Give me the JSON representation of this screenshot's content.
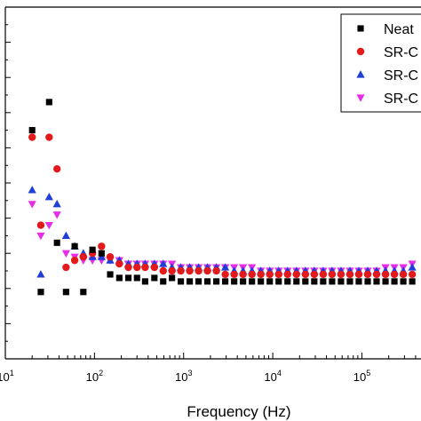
{
  "chart_data": {
    "type": "scatter",
    "xlabel": "Frequency (Hz)",
    "ylabel": "",
    "x_scale": "log",
    "x_ticks": [
      {
        "value": 10,
        "base": "10",
        "exp": "1"
      },
      {
        "value": 100,
        "base": "10",
        "exp": "2"
      },
      {
        "value": 1000,
        "base": "10",
        "exp": "3"
      },
      {
        "value": 10000,
        "base": "10",
        "exp": "4"
      },
      {
        "value": 100000,
        "base": "10",
        "exp": "5"
      }
    ],
    "xlim": [
      10,
      460000
    ],
    "ylim": [
      0,
      1
    ],
    "legend_position": "top-right",
    "series": [
      {
        "name": "Neat",
        "marker": "square",
        "color": "#000000",
        "points": [
          [
            20,
            0.65
          ],
          [
            25,
            0.19
          ],
          [
            31,
            0.73
          ],
          [
            38,
            0.33
          ],
          [
            48,
            0.19
          ],
          [
            60,
            0.32
          ],
          [
            75,
            0.19
          ],
          [
            95,
            0.31
          ],
          [
            120,
            0.3
          ],
          [
            150,
            0.24
          ],
          [
            190,
            0.23
          ],
          [
            240,
            0.23
          ],
          [
            300,
            0.23
          ],
          [
            370,
            0.22
          ],
          [
            470,
            0.23
          ],
          [
            590,
            0.22
          ],
          [
            740,
            0.23
          ],
          [
            930,
            0.22
          ],
          [
            1170,
            0.22
          ],
          [
            1470,
            0.22
          ],
          [
            1850,
            0.22
          ],
          [
            2330,
            0.22
          ],
          [
            2930,
            0.22
          ],
          [
            3690,
            0.22
          ],
          [
            4640,
            0.22
          ],
          [
            5840,
            0.22
          ],
          [
            7350,
            0.22
          ],
          [
            9250,
            0.22
          ],
          [
            11640,
            0.22
          ],
          [
            14650,
            0.22
          ],
          [
            18440,
            0.22
          ],
          [
            23210,
            0.22
          ],
          [
            29210,
            0.22
          ],
          [
            36770,
            0.22
          ],
          [
            46270,
            0.22
          ],
          [
            58240,
            0.22
          ],
          [
            73300,
            0.22
          ],
          [
            92250,
            0.22
          ],
          [
            116100,
            0.22
          ],
          [
            146100,
            0.22
          ],
          [
            183900,
            0.22
          ],
          [
            231500,
            0.22
          ],
          [
            291300,
            0.22
          ],
          [
            366700,
            0.22
          ],
          [
            461500,
            0.22
          ]
        ]
      },
      {
        "name": "SR-C",
        "marker": "circle",
        "color": "#e31a1c",
        "points": [
          [
            20,
            0.63
          ],
          [
            25,
            0.38
          ],
          [
            31,
            0.63
          ],
          [
            38,
            0.54
          ],
          [
            48,
            0.26
          ],
          [
            60,
            0.28
          ],
          [
            75,
            0.29
          ],
          [
            95,
            0.3
          ],
          [
            120,
            0.32
          ],
          [
            150,
            0.29
          ],
          [
            190,
            0.27
          ],
          [
            240,
            0.26
          ],
          [
            300,
            0.26
          ],
          [
            370,
            0.26
          ],
          [
            470,
            0.26
          ],
          [
            590,
            0.25
          ],
          [
            740,
            0.25
          ],
          [
            930,
            0.25
          ],
          [
            1170,
            0.25
          ],
          [
            1470,
            0.25
          ],
          [
            1850,
            0.25
          ],
          [
            2330,
            0.25
          ],
          [
            2930,
            0.24
          ],
          [
            3690,
            0.24
          ],
          [
            4640,
            0.24
          ],
          [
            5840,
            0.24
          ],
          [
            7350,
            0.24
          ],
          [
            9250,
            0.24
          ],
          [
            11640,
            0.24
          ],
          [
            14650,
            0.24
          ],
          [
            18440,
            0.24
          ],
          [
            23210,
            0.24
          ],
          [
            29210,
            0.24
          ],
          [
            36770,
            0.24
          ],
          [
            46270,
            0.24
          ],
          [
            58240,
            0.24
          ],
          [
            73300,
            0.24
          ],
          [
            92250,
            0.24
          ],
          [
            116100,
            0.24
          ],
          [
            146100,
            0.24
          ],
          [
            183900,
            0.24
          ],
          [
            231500,
            0.24
          ],
          [
            291300,
            0.24
          ],
          [
            366700,
            0.24
          ],
          [
            461500,
            0.25
          ]
        ]
      },
      {
        "name": "SR-C",
        "marker": "triangle-up",
        "color": "#1f3fd6",
        "points": [
          [
            20,
            0.48
          ],
          [
            25,
            0.24
          ],
          [
            31,
            0.46
          ],
          [
            38,
            0.44
          ],
          [
            48,
            0.35
          ],
          [
            60,
            0.32
          ],
          [
            75,
            0.3
          ],
          [
            95,
            0.29
          ],
          [
            120,
            0.29
          ],
          [
            150,
            0.28
          ],
          [
            190,
            0.28
          ],
          [
            240,
            0.27
          ],
          [
            300,
            0.27
          ],
          [
            370,
            0.27
          ],
          [
            470,
            0.27
          ],
          [
            590,
            0.27
          ],
          [
            740,
            0.26
          ],
          [
            930,
            0.26
          ],
          [
            1170,
            0.26
          ],
          [
            1470,
            0.26
          ],
          [
            1850,
            0.26
          ],
          [
            2330,
            0.26
          ],
          [
            2930,
            0.26
          ],
          [
            3690,
            0.25
          ],
          [
            4640,
            0.25
          ],
          [
            5840,
            0.25
          ],
          [
            7350,
            0.25
          ],
          [
            9250,
            0.25
          ],
          [
            11640,
            0.25
          ],
          [
            14650,
            0.25
          ],
          [
            18440,
            0.25
          ],
          [
            23210,
            0.25
          ],
          [
            29210,
            0.25
          ],
          [
            36770,
            0.25
          ],
          [
            46270,
            0.25
          ],
          [
            58240,
            0.25
          ],
          [
            73300,
            0.25
          ],
          [
            92250,
            0.25
          ],
          [
            116100,
            0.25
          ],
          [
            146100,
            0.25
          ],
          [
            183900,
            0.25
          ],
          [
            231500,
            0.25
          ],
          [
            291300,
            0.25
          ],
          [
            366700,
            0.26
          ],
          [
            461500,
            0.27
          ]
        ]
      },
      {
        "name": "SR-C",
        "marker": "triangle-down",
        "color": "#e62ee6",
        "points": [
          [
            20,
            0.44
          ],
          [
            25,
            0.35
          ],
          [
            31,
            0.38
          ],
          [
            38,
            0.41
          ],
          [
            48,
            0.3
          ],
          [
            60,
            0.29
          ],
          [
            75,
            0.28
          ],
          [
            95,
            0.28
          ],
          [
            120,
            0.28
          ],
          [
            150,
            0.28
          ],
          [
            190,
            0.28
          ],
          [
            240,
            0.27
          ],
          [
            300,
            0.27
          ],
          [
            370,
            0.27
          ],
          [
            470,
            0.27
          ],
          [
            590,
            0.27
          ],
          [
            740,
            0.27
          ],
          [
            930,
            0.26
          ],
          [
            1170,
            0.26
          ],
          [
            1470,
            0.26
          ],
          [
            1850,
            0.26
          ],
          [
            2330,
            0.26
          ],
          [
            2930,
            0.26
          ],
          [
            3690,
            0.26
          ],
          [
            4640,
            0.26
          ],
          [
            5840,
            0.26
          ],
          [
            7350,
            0.25
          ],
          [
            9250,
            0.25
          ],
          [
            11640,
            0.25
          ],
          [
            14650,
            0.25
          ],
          [
            18440,
            0.25
          ],
          [
            23210,
            0.25
          ],
          [
            29210,
            0.25
          ],
          [
            36770,
            0.25
          ],
          [
            46270,
            0.25
          ],
          [
            58240,
            0.25
          ],
          [
            73300,
            0.25
          ],
          [
            92250,
            0.25
          ],
          [
            116100,
            0.25
          ],
          [
            146100,
            0.25
          ],
          [
            183900,
            0.26
          ],
          [
            231500,
            0.26
          ],
          [
            291300,
            0.26
          ],
          [
            366700,
            0.27
          ],
          [
            461500,
            0.28
          ]
        ]
      }
    ]
  }
}
